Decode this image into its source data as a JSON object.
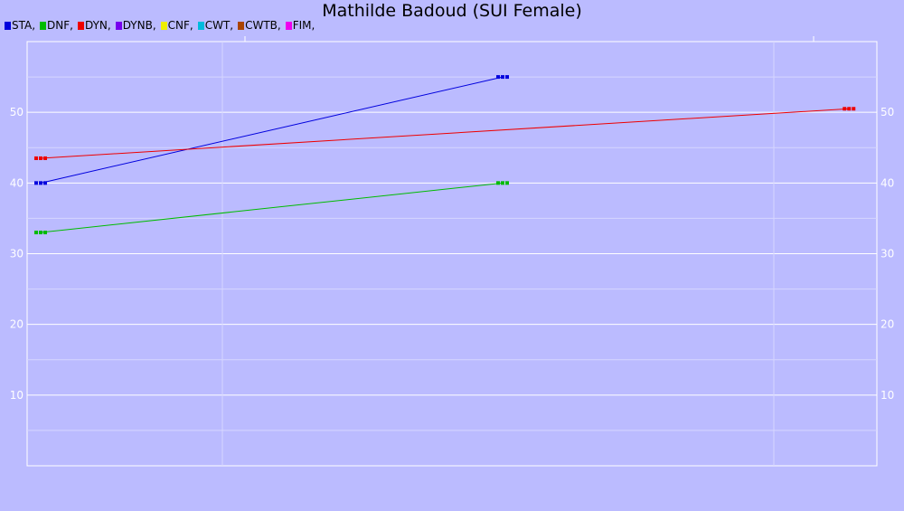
{
  "chart_data": {
    "type": "line",
    "title": "Mathilde Badoud (SUI Female)",
    "xlabel": "",
    "ylabel": "",
    "ylim": [
      0,
      60
    ],
    "yticks": [
      10,
      20,
      30,
      40,
      50
    ],
    "grid": true,
    "legend_position": "top-left",
    "series": [
      {
        "name": "STA",
        "color": "#0000dd",
        "x": [
          0,
          1
        ],
        "y": [
          40,
          55
        ]
      },
      {
        "name": "DNF",
        "color": "#00bb00",
        "x": [
          0,
          1
        ],
        "y": [
          33,
          40
        ]
      },
      {
        "name": "DYN",
        "color": "#ee0000",
        "x": [
          0,
          1.75
        ],
        "y": [
          43.5,
          50.5
        ]
      },
      {
        "name": "DYNB",
        "color": "#7700ee",
        "x": [],
        "y": []
      },
      {
        "name": "CNF",
        "color": "#eeee00",
        "x": [],
        "y": []
      },
      {
        "name": "CWT",
        "color": "#00bbdd",
        "x": [],
        "y": []
      },
      {
        "name": "CWTB",
        "color": "#aa4400",
        "x": [],
        "y": []
      },
      {
        "name": "FIM",
        "color": "#ee00ee",
        "x": [],
        "y": []
      }
    ]
  }
}
